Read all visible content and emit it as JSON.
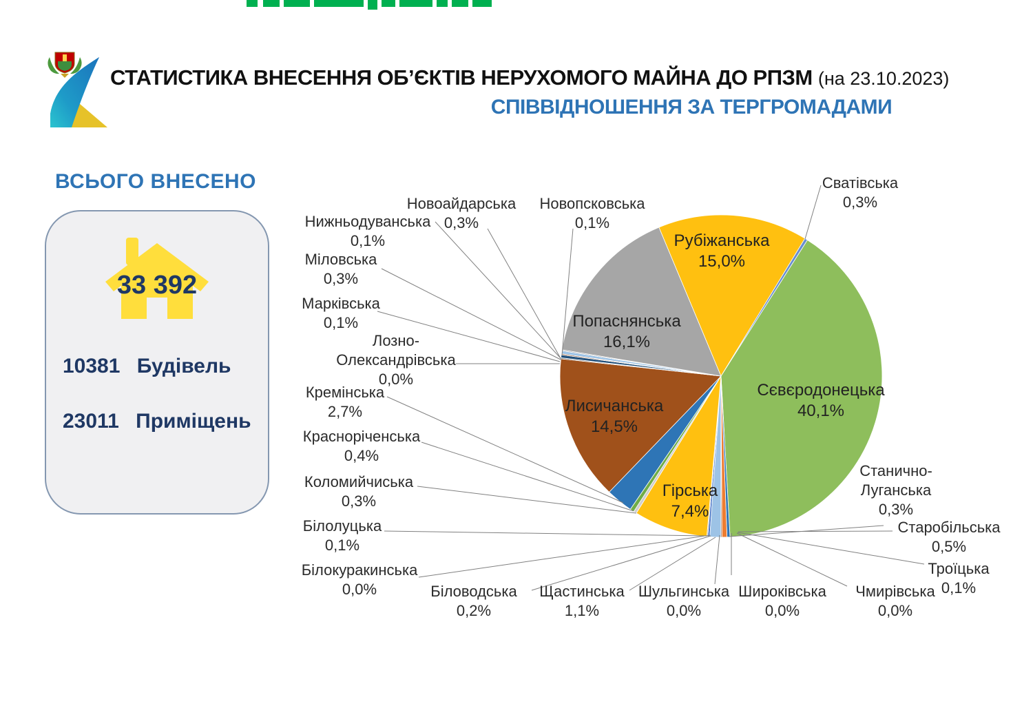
{
  "header": {
    "title": "СТАТИСТИКА ВНЕСЕННЯ ОБ’ЄКТІВ НЕРУХОМОГО МАЙНА ДО РПЗМ",
    "title_date": "(на 23.10.2023)",
    "subtitle": "СПІВВІДНОШЕННЯ ЗА ТЕРГРОМАДАМИ"
  },
  "summary": {
    "heading": "ВСЬОГО ВНЕСЕНО",
    "total": "33 392",
    "rows": [
      {
        "value": "10381",
        "label": "Будівель"
      },
      {
        "value": "23011",
        "label": "Приміщень"
      }
    ]
  },
  "chart_data": {
    "type": "pie",
    "title": "Співвідношення за тергромадами",
    "units": "percent",
    "start_angle_deg": 184,
    "legend": "none",
    "slices": [
      {
        "id": "bilovodska",
        "name": "Біловодська",
        "value": 0.2,
        "pct_label": "0,2%",
        "color": "#4472C4"
      },
      {
        "id": "bilokurakynska",
        "name": "Білокуракинська",
        "value": 0.0,
        "pct_label": "0,0%",
        "color": "#ED7D31"
      },
      {
        "id": "bilolutska",
        "name": "Білолуцька",
        "value": 0.1,
        "pct_label": "0,1%",
        "color": "#A5A5A5"
      },
      {
        "id": "hirska",
        "name": "Гірська",
        "value": 7.4,
        "pct_label": "7,4%",
        "color": "#FFC010"
      },
      {
        "id": "kolomyichyska",
        "name": "Коломийчиська",
        "value": 0.3,
        "pct_label": "0,3%",
        "color": "#D0CECE"
      },
      {
        "id": "krasnorichenska",
        "name": "Красноріченська",
        "value": 0.4,
        "pct_label": "0,4%",
        "color": "#70AD47"
      },
      {
        "id": "kreminska",
        "name": "Кремінська",
        "value": 2.7,
        "pct_label": "2,7%",
        "color": "#2E75B6"
      },
      {
        "id": "lysychanska",
        "name": "Лисичанська",
        "value": 14.5,
        "pct_label": "14,5%",
        "color": "#A0511B"
      },
      {
        "id": "lozno",
        "name": "Лозно-Олександрівська",
        "label_lines": [
          "Лозно-",
          "Олександрівська"
        ],
        "value": 0.0,
        "pct_label": "0,0%",
        "color": "#FFC000"
      },
      {
        "id": "markivska",
        "name": "Марківська",
        "value": 0.1,
        "pct_label": "0,1%",
        "color": "#636363"
      },
      {
        "id": "milovska",
        "name": "Міловська",
        "value": 0.3,
        "pct_label": "0,3%",
        "color": "#1F4E79"
      },
      {
        "id": "nyzhnoduvanska",
        "name": "Нижньодуванська",
        "value": 0.1,
        "pct_label": "0,1%",
        "color": "#843C0C"
      },
      {
        "id": "novoaidarska",
        "name": "Новоайдарська",
        "value": 0.3,
        "pct_label": "0,3%",
        "color": "#9DC3E6"
      },
      {
        "id": "novopskovska",
        "name": "Новопсковська",
        "value": 0.1,
        "pct_label": "0,1%",
        "color": "#7F7F7F"
      },
      {
        "id": "popasnianska",
        "name": "Попаснянська",
        "value": 16.1,
        "pct_label": "16,1%",
        "color": "#A6A6A6"
      },
      {
        "id": "rubizhanska",
        "name": "Рубіжанська",
        "value": 15.0,
        "pct_label": "15,0%",
        "color": "#FFC010"
      },
      {
        "id": "svativska",
        "name": "Сватівська",
        "value": 0.3,
        "pct_label": "0,3%",
        "color": "#698ED0"
      },
      {
        "id": "sievierodonetska",
        "name": "Сєвєродонецька",
        "value": 40.1,
        "pct_label": "40,1%",
        "color": "#8EBE5C"
      },
      {
        "id": "stanychno",
        "name": "Станично-Луганська",
        "label_lines": [
          "Станично-",
          "Луганська"
        ],
        "value": 0.3,
        "pct_label": "0,3%",
        "color": "#2E75B6"
      },
      {
        "id": "starobilska",
        "name": "Старобільська",
        "value": 0.5,
        "pct_label": "0,5%",
        "color": "#ED7D31"
      },
      {
        "id": "troitska",
        "name": "Троїцька",
        "value": 0.1,
        "pct_label": "0,1%",
        "color": "#843C0C"
      },
      {
        "id": "chmyrivska",
        "name": "Чмирівська",
        "value": 0.0,
        "pct_label": "0,0%",
        "color": "#FFD966"
      },
      {
        "id": "shyrokivska",
        "name": "Широківська",
        "value": 0.0,
        "pct_label": "0,0%",
        "color": "#9DC3E6"
      },
      {
        "id": "shulhynska",
        "name": "Шульгинська",
        "value": 0.0,
        "pct_label": "0,0%",
        "color": "#C55A11"
      },
      {
        "id": "shchastynska",
        "name": "Щастинська",
        "value": 1.1,
        "pct_label": "1,1%",
        "color": "#9DC3E6"
      }
    ]
  }
}
